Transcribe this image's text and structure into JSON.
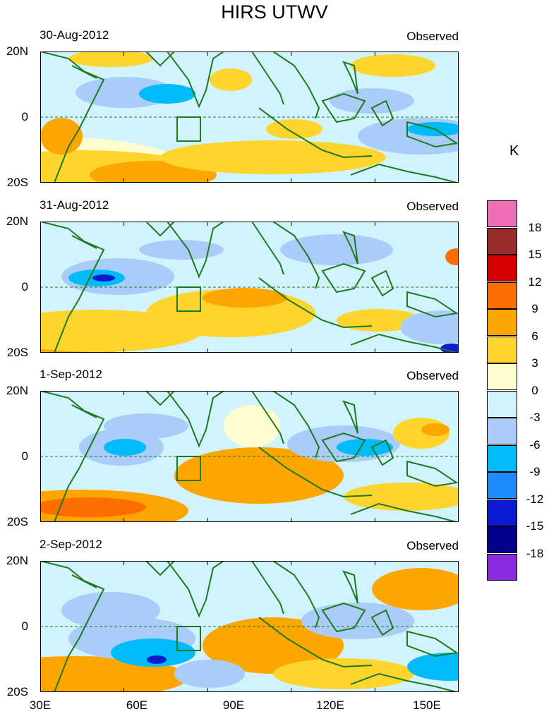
{
  "title": "HIRS UTWV",
  "observed_label": "Observed",
  "lat_labels": [
    "20N",
    "0",
    "20S"
  ],
  "lon_labels": [
    "30E",
    "60E",
    "90E",
    "120E",
    "150E"
  ],
  "panels": [
    {
      "date": "30-Aug-2012"
    },
    {
      "date": "31-Aug-2012"
    },
    {
      "date": "1-Sep-2012"
    },
    {
      "date": "2-Sep-2012"
    }
  ],
  "legend": {
    "unit": "K",
    "labels": [
      "18",
      "15",
      "12",
      "9",
      "6",
      "3",
      "0",
      "-3",
      "-6",
      "-9",
      "-12",
      "-15",
      "-18"
    ],
    "colors": [
      "#f06eb4",
      "#9a2b2b",
      "#d40000",
      "#fd6d00",
      "#fda500",
      "#fdd52c",
      "#fefdd0",
      "#d1f3fe",
      "#a9cdf8",
      "#00bbfa",
      "#1e8bfa",
      "#0a1bd1",
      "#05008c",
      "#8a2be2"
    ]
  },
  "colors": {
    "land_outline": "#1f7a1f",
    "equator": "#1f7a1f"
  }
}
